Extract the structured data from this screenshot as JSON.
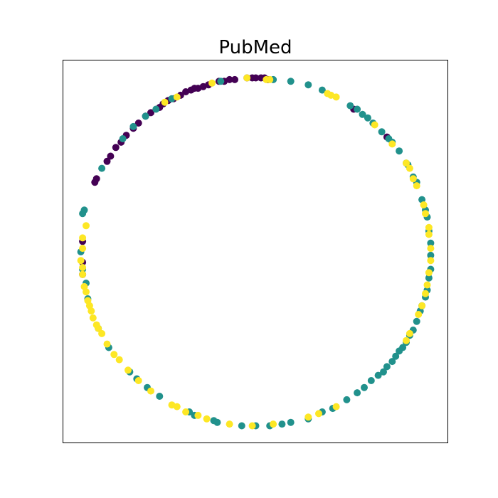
{
  "chart_data": {
    "type": "scatter",
    "title": "PubMed",
    "xlabel": "",
    "ylabel": "",
    "xlim": [
      -1.1,
      1.1
    ],
    "ylim": [
      -1.1,
      1.1
    ],
    "grid": false,
    "ticks": false,
    "legend": "none",
    "colors": {
      "class_0": "#440154",
      "class_1": "#21918c",
      "class_2": "#fde725"
    },
    "series": [
      {
        "color": "#440154",
        "points": [
          [
            0.05,
            1.0
          ],
          [
            0.03,
            1.0
          ],
          [
            0.0,
            1.0
          ],
          [
            -0.02,
            1.0
          ],
          [
            -0.05,
            1.0
          ],
          [
            -0.12,
            0.99
          ],
          [
            -0.15,
            0.99
          ],
          [
            -0.18,
            0.98
          ],
          [
            -0.21,
            0.98
          ],
          [
            -0.27,
            0.96
          ],
          [
            -0.3,
            0.95
          ],
          [
            -0.33,
            0.94
          ],
          [
            -0.37,
            0.93
          ],
          [
            -0.4,
            0.92
          ],
          [
            -0.43,
            0.9
          ],
          [
            -0.47,
            0.88
          ],
          [
            -0.5,
            0.87
          ],
          [
            -0.53,
            0.85
          ],
          [
            -0.55,
            0.83
          ],
          [
            -0.6,
            0.8
          ],
          [
            -0.67,
            0.74
          ],
          [
            -0.7,
            0.71
          ],
          [
            -0.74,
            0.67
          ],
          [
            -0.77,
            0.63
          ],
          [
            -0.8,
            0.6
          ],
          [
            -0.83,
            0.55
          ],
          [
            -0.85,
            0.52
          ],
          [
            -0.91,
            0.42
          ],
          [
            -0.92,
            0.4
          ],
          [
            -0.99,
            0.06
          ],
          [
            -0.99,
            -0.06
          ],
          [
            -0.99,
            -0.13
          ],
          [
            0.56,
            0.82
          ],
          [
            0.75,
            0.66
          ],
          [
            0.07,
            0.99
          ],
          [
            -0.35,
            0.94
          ],
          [
            -0.63,
            0.78
          ]
        ]
      },
      {
        "color": "#21918c",
        "points": [
          [
            0.1,
            0.99
          ],
          [
            0.2,
            0.98
          ],
          [
            0.3,
            0.96
          ],
          [
            0.38,
            0.93
          ],
          [
            0.54,
            0.84
          ],
          [
            0.58,
            0.82
          ],
          [
            0.61,
            0.79
          ],
          [
            0.64,
            0.77
          ],
          [
            0.67,
            0.74
          ],
          [
            0.72,
            0.69
          ],
          [
            0.78,
            0.63
          ],
          [
            0.82,
            0.58
          ],
          [
            0.86,
            0.51
          ],
          [
            0.9,
            0.43
          ],
          [
            0.92,
            0.4
          ],
          [
            0.95,
            0.3
          ],
          [
            0.97,
            0.24
          ],
          [
            0.98,
            0.2
          ],
          [
            0.99,
            0.12
          ],
          [
            1.0,
            0.05
          ],
          [
            1.0,
            -0.02
          ],
          [
            1.0,
            -0.1
          ],
          [
            0.99,
            -0.15
          ],
          [
            0.98,
            -0.22
          ],
          [
            0.97,
            -0.26
          ],
          [
            0.95,
            -0.31
          ],
          [
            0.94,
            -0.34
          ],
          [
            0.92,
            -0.4
          ],
          [
            0.9,
            -0.45
          ],
          [
            0.88,
            -0.48
          ],
          [
            0.86,
            -0.52
          ],
          [
            0.84,
            -0.55
          ],
          [
            0.82,
            -0.57
          ],
          [
            0.8,
            -0.6
          ],
          [
            0.78,
            -0.63
          ],
          [
            0.75,
            -0.66
          ],
          [
            0.73,
            -0.69
          ],
          [
            0.7,
            -0.71
          ],
          [
            0.66,
            -0.74
          ],
          [
            0.62,
            -0.78
          ],
          [
            0.58,
            -0.81
          ],
          [
            0.52,
            -0.85
          ],
          [
            0.44,
            -0.9
          ],
          [
            0.38,
            -0.92
          ],
          [
            0.3,
            -0.96
          ],
          [
            0.2,
            -0.98
          ],
          [
            0.15,
            -0.99
          ],
          [
            0.08,
            -1.0
          ],
          [
            0.0,
            -1.0
          ],
          [
            -0.08,
            -1.0
          ],
          [
            -0.22,
            -0.98
          ],
          [
            -0.24,
            -0.97
          ],
          [
            -0.35,
            -0.94
          ],
          [
            -0.38,
            -0.92
          ],
          [
            -0.55,
            -0.83
          ],
          [
            -0.62,
            -0.78
          ],
          [
            -0.68,
            -0.73
          ],
          [
            -0.72,
            -0.69
          ],
          [
            -0.84,
            -0.55
          ],
          [
            -0.9,
            -0.44
          ],
          [
            -0.96,
            -0.27
          ],
          [
            -0.97,
            -0.18
          ],
          [
            -0.99,
            -0.1
          ],
          [
            -1.0,
            0.0
          ],
          [
            -0.99,
            0.22
          ],
          [
            -0.98,
            0.24
          ],
          [
            -0.88,
            0.48
          ],
          [
            -0.76,
            0.65
          ],
          [
            -0.7,
            0.72
          ],
          [
            -0.63,
            0.78
          ],
          [
            -0.57,
            0.82
          ],
          [
            -0.48,
            0.88
          ],
          [
            -0.2,
            0.98
          ],
          [
            0.76,
            0.65
          ],
          [
            0.87,
            0.5
          ]
        ]
      },
      {
        "color": "#fde725",
        "points": [
          [
            0.08,
            0.99
          ],
          [
            0.06,
            0.99
          ],
          [
            -0.05,
            1.0
          ],
          [
            -0.25,
            0.97
          ],
          [
            -0.45,
            0.89
          ],
          [
            -0.52,
            0.86
          ],
          [
            -0.97,
            0.15
          ],
          [
            -0.99,
            0.08
          ],
          [
            -0.99,
            0.02
          ],
          [
            -1.0,
            -0.05
          ],
          [
            -0.99,
            -0.09
          ],
          [
            -0.99,
            -0.13
          ],
          [
            -0.98,
            -0.2
          ],
          [
            -0.97,
            -0.23
          ],
          [
            -0.96,
            -0.28
          ],
          [
            -0.95,
            -0.31
          ],
          [
            -0.94,
            -0.34
          ],
          [
            -0.93,
            -0.38
          ],
          [
            -0.91,
            -0.42
          ],
          [
            -0.9,
            -0.44
          ],
          [
            -0.88,
            -0.47
          ],
          [
            -0.85,
            -0.53
          ],
          [
            -0.81,
            -0.59
          ],
          [
            -0.78,
            -0.62
          ],
          [
            -0.73,
            -0.68
          ],
          [
            -0.67,
            -0.74
          ],
          [
            -0.6,
            -0.8
          ],
          [
            -0.48,
            -0.88
          ],
          [
            -0.45,
            -0.89
          ],
          [
            -0.4,
            -0.92
          ],
          [
            -0.33,
            -0.94
          ],
          [
            -0.28,
            -0.96
          ],
          [
            -0.15,
            -0.99
          ],
          [
            -0.02,
            -1.0
          ],
          [
            0.1,
            -0.99
          ],
          [
            0.3,
            -0.95
          ],
          [
            0.36,
            -0.93
          ],
          [
            0.46,
            -0.89
          ],
          [
            0.86,
            -0.51
          ],
          [
            0.88,
            -0.47
          ],
          [
            0.93,
            -0.36
          ],
          [
            0.95,
            -0.31
          ],
          [
            0.97,
            -0.24
          ],
          [
            0.98,
            -0.19
          ],
          [
            0.99,
            -0.12
          ],
          [
            1.0,
            -0.05
          ],
          [
            1.0,
            0.02
          ],
          [
            0.99,
            0.1
          ],
          [
            0.99,
            0.14
          ],
          [
            0.97,
            0.22
          ],
          [
            0.96,
            0.27
          ],
          [
            0.92,
            0.38
          ],
          [
            0.9,
            0.42
          ],
          [
            0.88,
            0.48
          ],
          [
            0.86,
            0.51
          ],
          [
            0.68,
            0.73
          ],
          [
            0.46,
            0.89
          ],
          [
            0.43,
            0.9
          ],
          [
            0.41,
            0.91
          ],
          [
            0.78,
            0.62
          ]
        ]
      }
    ]
  }
}
